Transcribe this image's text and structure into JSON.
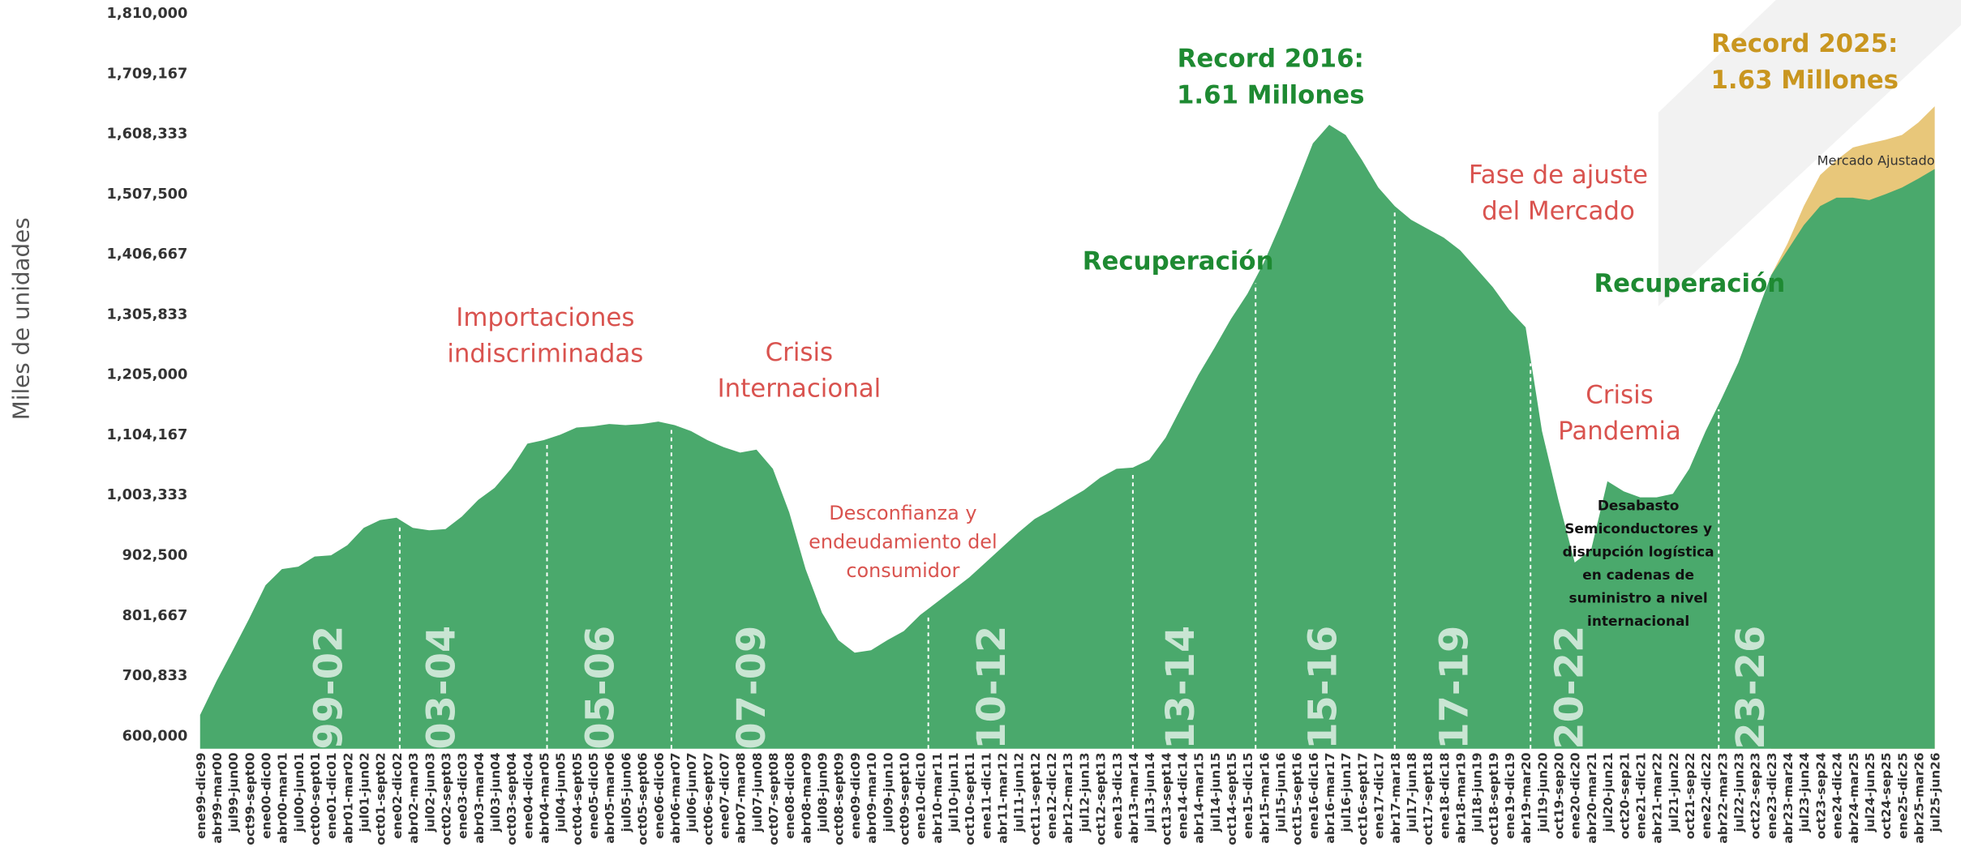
{
  "chart_data": {
    "type": "area",
    "ylabel": "Miles de unidades",
    "ylim": [
      600000,
      1810000
    ],
    "yticks": [
      {
        "value": 600000,
        "label": "600,000"
      },
      {
        "value": 700833,
        "label": "700,833"
      },
      {
        "value": 801667,
        "label": "801,667"
      },
      {
        "value": 902500,
        "label": "902,500"
      },
      {
        "value": 1003333,
        "label": "1,003,333"
      },
      {
        "value": 1104167,
        "label": "1,104,167"
      },
      {
        "value": 1205000,
        "label": "1,205,000"
      },
      {
        "value": 1305833,
        "label": "1,305,833"
      },
      {
        "value": 1406667,
        "label": "1,406,667"
      },
      {
        "value": 1507500,
        "label": "1,507,500"
      },
      {
        "value": 1608333,
        "label": "1,608,333"
      },
      {
        "value": 1709167,
        "label": "1,709,167"
      },
      {
        "value": 1810000,
        "label": "1,810,000"
      }
    ],
    "grid": false,
    "categories": [
      "ene99-dic99",
      "abr99-mar00",
      "jul99-jun00",
      "oct99-sept00",
      "ene00-dic00",
      "abr00-mar01",
      "jul00-jun01",
      "oct00-sept01",
      "ene01-dic01",
      "abr01-mar02",
      "jul01-jun02",
      "oct01-sept02",
      "ene02-dic02",
      "abr02-mar03",
      "jul02-jun03",
      "oct02-sept03",
      "ene03-dic03",
      "abr03-mar04",
      "jul03-jun04",
      "oct03-sept04",
      "ene04-dic04",
      "abr04-mar05",
      "jul04-jun05",
      "oct04-sept05",
      "ene05-dic05",
      "abr05-mar06",
      "jul05-jun06",
      "oct05-sept06",
      "ene06-dic06",
      "abr06-mar07",
      "jul06-jun07",
      "oct06-sept07",
      "ene07-dic07",
      "abr07-mar08",
      "jul07-jun08",
      "oct07-sept08",
      "ene08-dic08",
      "abr08-mar09",
      "jul08-jun09",
      "oct08-sept09",
      "ene09-dic09",
      "abr09-mar10",
      "jul09-jun10",
      "oct09-sept10",
      "ene10-dic10",
      "abr10-mar11",
      "jul10-jun11",
      "oct10-sept11",
      "ene11-dic11",
      "abr11-mar12",
      "jul11-jun12",
      "oct11-sept12",
      "ene12-dic12",
      "abr12-mar13",
      "jul12-jun13",
      "oct12-sept13",
      "ene13-dic13",
      "abr13-mar14",
      "jul13-jun14",
      "oct13-sept14",
      "ene14-dic14",
      "abr14-mar15",
      "jul14-jun15",
      "oct14-sept15",
      "ene15-dic15",
      "abr15-mar16",
      "jul15-jun16",
      "oct15-sept16",
      "ene16-dic16",
      "abr16-mar17",
      "jul16-jun17",
      "oct16-sept17",
      "ene17-dic17",
      "abr17-mar18",
      "jul17-jun18",
      "oct17-sept18",
      "ene18-dic18",
      "abr18-mar19",
      "jul18-jun19",
      "oct18-sept19",
      "ene19-dic19",
      "abr19-mar20",
      "jul19-jun20",
      "oct19-sep20",
      "ene20-dic20",
      "abr20-mar21",
      "jul20-jun21",
      "oct20-sep21",
      "ene21-dic21",
      "abr21-mar22",
      "jul21-jun22",
      "oct21-sep22",
      "ene22-dic22",
      "abr22-mar23",
      "jul22-jun23",
      "oct22-sep23",
      "ene23-dic23",
      "abr23-mar24",
      "jul23-jun24",
      "oct23-sep24",
      "ene24-dic24",
      "abr24-mar25",
      "jul24-jun25",
      "oct24-sep25",
      "ene25-dic25",
      "abr25-mar26",
      "jul25-jun26"
    ],
    "series": [
      {
        "name": "Mercado Ajustado",
        "color": "#e8c77a",
        "values": [
          null,
          null,
          null,
          null,
          null,
          null,
          null,
          null,
          null,
          null,
          null,
          null,
          null,
          null,
          null,
          null,
          null,
          null,
          null,
          null,
          null,
          null,
          null,
          null,
          null,
          null,
          null,
          null,
          null,
          null,
          null,
          null,
          null,
          null,
          null,
          null,
          null,
          null,
          null,
          null,
          null,
          null,
          null,
          null,
          null,
          null,
          null,
          null,
          null,
          null,
          null,
          null,
          null,
          null,
          null,
          null,
          null,
          null,
          null,
          null,
          null,
          null,
          null,
          null,
          null,
          null,
          null,
          null,
          null,
          null,
          null,
          null,
          null,
          null,
          null,
          null,
          null,
          null,
          null,
          null,
          null,
          null,
          null,
          null,
          null,
          null,
          null,
          null,
          null,
          null,
          null,
          null,
          null,
          null,
          null,
          null,
          1372000,
          1425000,
          1488000,
          1540000,
          1565000,
          1586000,
          1593000,
          1599000,
          1607000,
          1628000,
          1655000
        ]
      },
      {
        "color": "#4aa96c",
        "values": [
          635600,
          692000,
          744000,
          797000,
          853000,
          880000,
          884000,
          901000,
          903000,
          920000,
          949000,
          962000,
          966000,
          949000,
          945000,
          947000,
          968000,
          996000,
          1016000,
          1048000,
          1090000,
          1096000,
          1105000,
          1117000,
          1119000,
          1123000,
          1121000,
          1123000,
          1127000,
          1121000,
          1111000,
          1096000,
          1084000,
          1075000,
          1080000,
          1048000,
          975000,
          880000,
          807000,
          761000,
          740000,
          744000,
          761000,
          776000,
          803000,
          824000,
          845000,
          866000,
          891000,
          916000,
          941000,
          964000,
          979000,
          996000,
          1012000,
          1033000,
          1048000,
          1050000,
          1063000,
          1100000,
          1153000,
          1205000,
          1251000,
          1299000,
          1341000,
          1393000,
          1456000,
          1523000,
          1593000,
          1624000,
          1607000,
          1565000,
          1519000,
          1488000,
          1465000,
          1450000,
          1435000,
          1414000,
          1383000,
          1352000,
          1314000,
          1285000,
          1111000,
          996000,
          891000,
          912000,
          1027000,
          1010000,
          1000000,
          1000000,
          1006000,
          1048000,
          1111000,
          1167000,
          1226000,
          1299000,
          1372000,
          1414000,
          1456000,
          1488000,
          1502000,
          1502000,
          1498000,
          1508000,
          1519000,
          1534000,
          1550000
        ]
      }
    ],
    "periods": [
      "99-02",
      "03-04",
      "05-06",
      "07-09",
      "10-12",
      "13-14",
      "15-16",
      "17-19",
      "20-22",
      "23-26"
    ],
    "annotations": [
      {
        "lines": [
          "Importaciones",
          "indiscriminadas"
        ],
        "color": "#d9534f"
      },
      {
        "lines": [
          "Crisis",
          "Internacional"
        ],
        "color": "#d9534f"
      },
      {
        "lines": [
          "Desconfianza y",
          "endeudamiento del",
          "consumidor"
        ],
        "color": "#d9534f"
      },
      {
        "lines": [
          "Recuperación"
        ],
        "color": "#1e8a32"
      },
      {
        "lines": [
          "Record 2016:",
          "1.61 Millones"
        ],
        "color": "#1e8a32"
      },
      {
        "lines": [
          "Fase de ajuste",
          "del Mercado"
        ],
        "color": "#d9534f"
      },
      {
        "lines": [
          "Recuperación"
        ],
        "color": "#1e8a32"
      },
      {
        "lines": [
          "Crisis",
          "Pandemia"
        ],
        "color": "#d9534f"
      },
      {
        "lines": [
          "Desabasto",
          "Semiconductores y",
          "disrupción logística",
          "en cadenas de",
          "suministro a nivel",
          "internacional"
        ],
        "color": "#111111"
      },
      {
        "lines": [
          "Record 2025:",
          "1.63 Millones"
        ],
        "color": "#c9961f"
      }
    ]
  }
}
